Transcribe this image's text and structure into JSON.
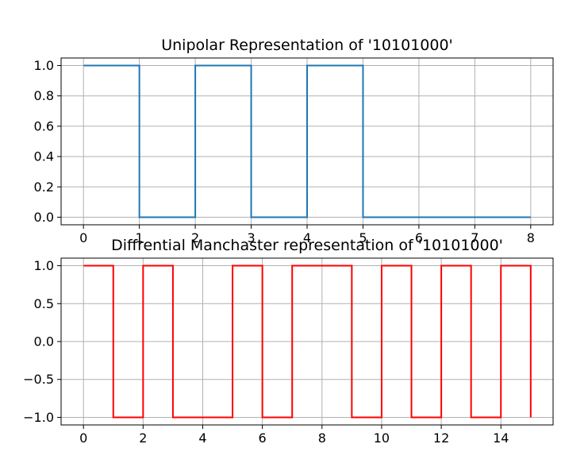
{
  "chart_data": [
    {
      "type": "line",
      "step": "post",
      "title": "Unipolar Representation of '10101000'",
      "xlabel": "",
      "ylabel": "",
      "xlim": [
        -0.4,
        8.4
      ],
      "ylim": [
        -0.05,
        1.05
      ],
      "xticks": [
        0,
        1,
        2,
        3,
        4,
        5,
        6,
        7,
        8
      ],
      "xtick_labels": [
        "0",
        "1",
        "2",
        "3",
        "4",
        "5",
        "6",
        "7",
        "8"
      ],
      "yticks": [
        0.0,
        0.2,
        0.4,
        0.6,
        0.8,
        1.0
      ],
      "ytick_labels": [
        "0.0",
        "0.2",
        "0.4",
        "0.6",
        "0.8",
        "1.0"
      ],
      "grid": true,
      "series": [
        {
          "color": "#1f77b4",
          "x": [
            0,
            1,
            1,
            2,
            2,
            3,
            3,
            4,
            4,
            5,
            5,
            8
          ],
          "y": [
            1,
            1,
            0,
            0,
            1,
            1,
            0,
            0,
            1,
            1,
            0,
            0
          ]
        }
      ]
    },
    {
      "type": "line",
      "step": "post",
      "title": "Diffrential Manchaster representation of '10101000'",
      "xlabel": "",
      "ylabel": "",
      "xlim": [
        -0.75,
        15.75
      ],
      "ylim": [
        -1.1,
        1.1
      ],
      "xticks": [
        0,
        2,
        4,
        6,
        8,
        10,
        12,
        14
      ],
      "xtick_labels": [
        "0",
        "2",
        "4",
        "6",
        "8",
        "10",
        "12",
        "14"
      ],
      "yticks": [
        -1.0,
        -0.5,
        0.0,
        0.5,
        1.0
      ],
      "ytick_labels": [
        "−1.0",
        "−0.5",
        "0.0",
        "0.5",
        "1.0"
      ],
      "grid": true,
      "series": [
        {
          "color": "#ff0000",
          "x": [
            0,
            1,
            1,
            2,
            2,
            3,
            3,
            5,
            5,
            6,
            6,
            7,
            7,
            9,
            9,
            10,
            10,
            11,
            11,
            12,
            12,
            13,
            13,
            14,
            14,
            15,
            15
          ],
          "y": [
            1,
            1,
            -1,
            -1,
            1,
            1,
            -1,
            -1,
            1,
            1,
            -1,
            -1,
            1,
            1,
            -1,
            -1,
            1,
            1,
            -1,
            -1,
            1,
            1,
            -1,
            -1,
            1,
            1,
            -1
          ]
        }
      ]
    }
  ]
}
